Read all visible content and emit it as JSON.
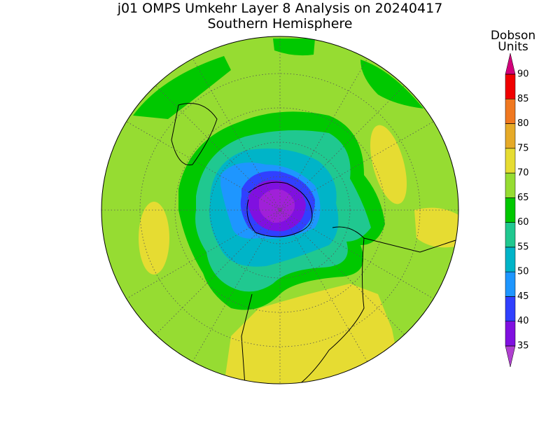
{
  "title": "j01 OMPS Umkehr Layer 8 Analysis on 20240417",
  "subtitle": "Southern Hemisphere",
  "colorbar": {
    "label": [
      "Dobson",
      "Units"
    ],
    "ticks": [
      35,
      40,
      45,
      50,
      55,
      60,
      65,
      70,
      75,
      80,
      85,
      90
    ],
    "colors": [
      "#b040d0",
      "#8010e0",
      "#3040ff",
      "#1e96ff",
      "#00b4c8",
      "#20c890",
      "#00c800",
      "#96dc32",
      "#e6dc32",
      "#e6aa28",
      "#f07820",
      "#f00000",
      "#d2007a"
    ]
  }
}
